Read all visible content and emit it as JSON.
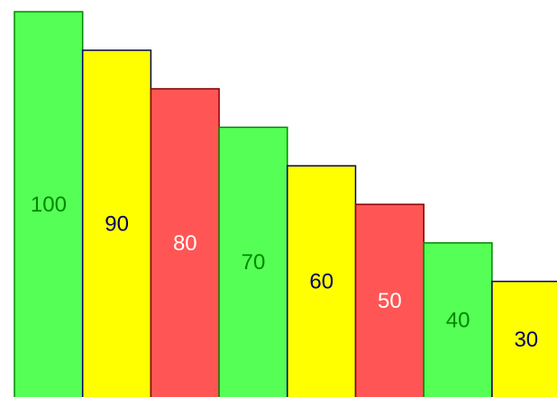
{
  "chart_data": {
    "type": "bar",
    "title": "",
    "xlabel": "",
    "ylabel": "",
    "ylim": [
      0,
      100
    ],
    "grid": false,
    "legend": "none",
    "values": [
      100,
      90,
      80,
      70,
      60,
      50,
      40,
      30
    ],
    "data_labels": [
      "100",
      "90",
      "80",
      "70",
      "60",
      "50",
      "40",
      "30"
    ],
    "bar_colors": [
      "#55ff55",
      "#ffff00",
      "#ff5555",
      "#55ff55",
      "#ffff00",
      "#ff5555",
      "#55ff55",
      "#ffff00"
    ],
    "border_colors": [
      "#008800",
      "#000066",
      "#880000",
      "#008800",
      "#000066",
      "#880000",
      "#008800",
      "#000066"
    ],
    "label_colors": [
      "#008800",
      "#000066",
      "#ffffff",
      "#008800",
      "#000066",
      "#ffffff",
      "#008800",
      "#000066"
    ]
  }
}
